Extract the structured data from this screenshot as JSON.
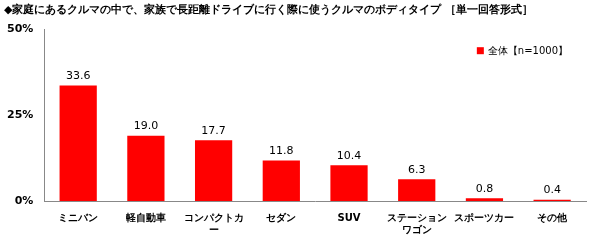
{
  "chart_data": {
    "type": "bar",
    "title": "◆家庭にあるクルマの中で、家族で長距離ドライブに行く際に使うクルマのボディタイプ ［単一回答形式］",
    "categories": [
      "ミニバン",
      "軽自動車",
      "コンパクトカー",
      "セダン",
      "SUV",
      "ステーションワゴン",
      "スポーツカー",
      "その他"
    ],
    "series": [
      {
        "name": "全体【n=1000】",
        "color": "#ff0000",
        "values": [
          33.6,
          19.0,
          17.7,
          11.8,
          10.4,
          6.3,
          0.8,
          0.4
        ],
        "value_labels": [
          "33.6",
          "19.0",
          "17.7",
          "11.8",
          "10.4",
          "6.3",
          "0.8",
          "0.4"
        ]
      }
    ],
    "ylim": [
      0,
      50
    ],
    "yticks": [
      {
        "value": 0,
        "label": "0%"
      },
      {
        "value": 25,
        "label": "25%"
      },
      {
        "value": 50,
        "label": "50%"
      }
    ],
    "grid": false,
    "legend": "top right",
    "data_labels": true
  }
}
